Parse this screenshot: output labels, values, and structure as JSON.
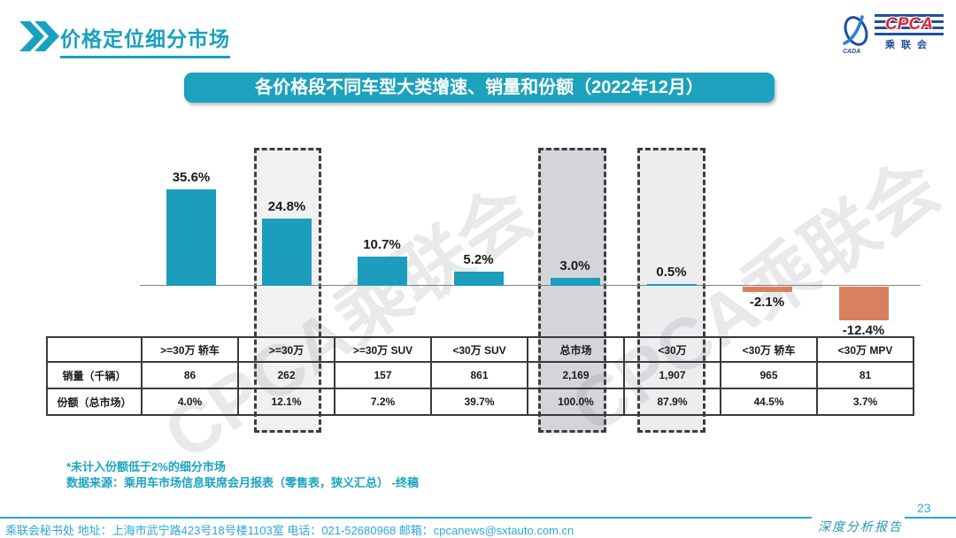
{
  "header": {
    "title": "价格定位细分市场"
  },
  "logo": {
    "cpca": "CPCA",
    "name": "乘联会",
    "sub": "CADA"
  },
  "banner": {
    "title": "各价格段不同车型大类增速、销量和份额（2022年12月）"
  },
  "chart_data": {
    "type": "bar",
    "title": "各价格段不同车型大类增速、销量和份额（2022年12月）",
    "categories": [
      ">=30万 轿车",
      ">=30万",
      ">=30万 SUV",
      "<30万 SUV",
      "总市场",
      "<30万",
      "<30万 轿车",
      "<30万 MPV"
    ],
    "series": [
      {
        "name": "增速",
        "values": [
          35.6,
          24.8,
          10.7,
          5.2,
          3.0,
          0.5,
          -2.1,
          -12.4
        ]
      },
      {
        "name": "销量（千辆）",
        "values": [
          86,
          262,
          157,
          861,
          2169,
          1907,
          965,
          81
        ]
      },
      {
        "name": "份额（总市场）",
        "values": [
          4.0,
          12.1,
          7.2,
          39.7,
          100.0,
          87.9,
          44.5,
          3.7
        ]
      }
    ],
    "labels": [
      "35.6%",
      "24.8%",
      "10.7%",
      "5.2%",
      "3.0%",
      "0.5%",
      "-2.1%",
      "-12.4%"
    ],
    "highlighted_categories": [
      ">=30万",
      "总市场",
      "<30万"
    ],
    "xlabel": "",
    "ylabel": "",
    "grid": false,
    "legend": false,
    "colors": {
      "positive": "#1b9dbb",
      "negative": "#d9815f"
    }
  },
  "table": {
    "columns": [
      "",
      ">=30万 轿车",
      ">=30万",
      ">=30万 SUV",
      "<30万 SUV",
      "总市场",
      "<30万",
      "<30万 轿车",
      "<30万 MPV"
    ],
    "rows": [
      {
        "label": "销量（千辆）",
        "values": [
          "86",
          "262",
          "157",
          "861",
          "2,169",
          "1,907",
          "965",
          "81"
        ]
      },
      {
        "label": "份额（总市场）",
        "values": [
          "4.0%",
          "12.1%",
          "7.2%",
          "39.7%",
          "100.0%",
          "87.9%",
          "44.5%",
          "3.7%"
        ]
      }
    ]
  },
  "footnote": {
    "line1": "*未计入份额低于2%的细分市场",
    "line2": "数据来源：乘用车市场信息联席会月报表（零售表，狭义汇总） -终稿"
  },
  "footer": {
    "contact": "乘联会秘书处   地址：上海市武宁路423号18号楼1103室 电话：021-52680968   邮箱：cpcanews@sxtauto.com.cn",
    "page": "23",
    "report": "深度分析报告"
  },
  "watermark": "CPCA乘联会"
}
